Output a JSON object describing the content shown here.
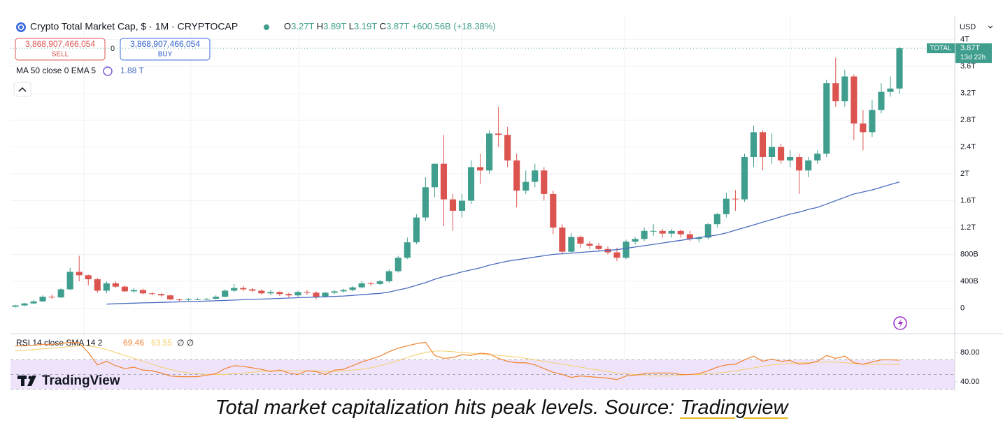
{
  "chart_data": {
    "type": "candlestick",
    "title": "Crypto Total Market Cap, $ · 1M · CRYPTOCAP",
    "ohlc_header": [
      {
        "key": "O",
        "text": "3.27T"
      },
      {
        "key": "H",
        "text": "3.89T"
      },
      {
        "key": "L",
        "text": "3.19T"
      },
      {
        "key": "C",
        "text": "3.87T"
      }
    ],
    "change": "+600.56B (+18.38%)",
    "sell": {
      "price": "3,868,907,466,054",
      "label": "SELL"
    },
    "spread": "0",
    "buy": {
      "price": "3,868,907,466,054",
      "label": "BUY"
    },
    "currency": "USD",
    "price_tag": {
      "symbol": "TOTAL",
      "price": "3.87T",
      "countdown": "13d 22h"
    },
    "logo": "TradingView",
    "caption": "Total market capitalization hits peak levels. Source: ",
    "caption_link": "Tradingview",
    "up_color": "#3f9e8d",
    "down_color": "#dc5450",
    "ylim": [
      -0.38,
      4.36
    ],
    "yticks": [
      0,
      {
        "value": 0.4,
        "label": "400B"
      },
      {
        "value": 0.8,
        "label": "800B"
      },
      {
        "value": 1.2,
        "label": "1.2T"
      },
      {
        "value": 1.6,
        "label": "1.6T"
      },
      {
        "value": 2,
        "label": "2T"
      },
      {
        "value": 2.4,
        "label": "2.4T"
      },
      {
        "value": 2.8,
        "label": "2.8T"
      },
      {
        "value": 3.2,
        "label": "3.2T"
      },
      {
        "value": 3.6,
        "label": "3.6T"
      },
      {
        "value": 4,
        "label": "4T"
      }
    ],
    "grid": true,
    "open": [
      0.02,
      0.04,
      0.07,
      0.1,
      0.17,
      0.16,
      0.28,
      0.54,
      0.49,
      0.43,
      0.26,
      0.37,
      0.32,
      0.25,
      0.27,
      0.22,
      0.21,
      0.19,
      0.13,
      0.12,
      0.13,
      0.13,
      0.14,
      0.17,
      0.26,
      0.3,
      0.28,
      0.26,
      0.22,
      0.24,
      0.21,
      0.19,
      0.24,
      0.23,
      0.17,
      0.23,
      0.25,
      0.27,
      0.31,
      0.37,
      0.36,
      0.4,
      0.55,
      0.75,
      0.98,
      1.35,
      1.8,
      2.15,
      1.62,
      1.45,
      1.6,
      2.1,
      2.05,
      2.6,
      2.58,
      2.2,
      1.75,
      1.88,
      2.05,
      1.7,
      1.2,
      0.84,
      1.06,
      0.96,
      0.93,
      0.88,
      0.83,
      0.75,
      0.99,
      1.03,
      1.15,
      1.15,
      1.11,
      1.15,
      1.1,
      1.03,
      1.05,
      1.25,
      1.4,
      1.63,
      1.62,
      2.25,
      2.62,
      2.25,
      2.4,
      2.2,
      2.25,
      2.05,
      2.2,
      2.3,
      3.35,
      3.08,
      3.45,
      2.75,
      2.62,
      2.95,
      3.22,
      3.27
    ],
    "high": [
      0.05,
      0.08,
      0.12,
      0.19,
      0.2,
      0.3,
      0.6,
      0.78,
      0.5,
      0.45,
      0.4,
      0.4,
      0.34,
      0.3,
      0.29,
      0.24,
      0.22,
      0.2,
      0.14,
      0.15,
      0.15,
      0.15,
      0.19,
      0.28,
      0.36,
      0.33,
      0.3,
      0.28,
      0.27,
      0.25,
      0.23,
      0.26,
      0.27,
      0.25,
      0.24,
      0.27,
      0.29,
      0.33,
      0.4,
      0.39,
      0.42,
      0.58,
      0.78,
      1.05,
      1.4,
      1.95,
      2.15,
      2.58,
      1.7,
      1.7,
      2.2,
      2.3,
      2.65,
      3.0,
      2.7,
      2.3,
      2.05,
      2.15,
      2.1,
      1.75,
      1.25,
      1.12,
      1.08,
      1.0,
      0.97,
      0.92,
      0.9,
      1.02,
      1.06,
      1.2,
      1.25,
      1.18,
      1.18,
      1.17,
      1.15,
      1.07,
      1.27,
      1.42,
      1.72,
      1.76,
      2.3,
      2.72,
      2.65,
      2.6,
      2.45,
      2.35,
      2.3,
      2.25,
      2.35,
      3.4,
      3.73,
      3.55,
      3.48,
      2.95,
      3.1,
      3.35,
      3.45,
      3.89
    ],
    "low": [
      0.01,
      0.03,
      0.06,
      0.09,
      0.14,
      0.15,
      0.27,
      0.4,
      0.34,
      0.23,
      0.22,
      0.3,
      0.24,
      0.23,
      0.2,
      0.19,
      0.17,
      0.12,
      0.1,
      0.11,
      0.12,
      0.12,
      0.13,
      0.16,
      0.24,
      0.25,
      0.24,
      0.2,
      0.19,
      0.18,
      0.16,
      0.17,
      0.2,
      0.13,
      0.16,
      0.21,
      0.23,
      0.25,
      0.29,
      0.33,
      0.34,
      0.38,
      0.53,
      0.73,
      0.95,
      1.3,
      1.65,
      1.22,
      1.15,
      1.35,
      1.55,
      1.85,
      2.0,
      2.4,
      2.1,
      1.5,
      1.7,
      1.8,
      1.6,
      1.1,
      0.8,
      0.82,
      0.9,
      0.88,
      0.85,
      0.8,
      0.7,
      0.73,
      0.95,
      1.0,
      1.08,
      1.05,
      1.05,
      1.05,
      1.0,
      0.98,
      1.02,
      1.2,
      1.35,
      1.45,
      1.58,
      2.1,
      2.05,
      2.15,
      2.15,
      2.1,
      1.7,
      1.95,
      2.15,
      2.25,
      3.0,
      3.0,
      2.5,
      2.35,
      2.55,
      2.9,
      3.15,
      3.19
    ],
    "close": [
      0.04,
      0.07,
      0.1,
      0.17,
      0.16,
      0.28,
      0.54,
      0.49,
      0.43,
      0.26,
      0.37,
      0.32,
      0.25,
      0.27,
      0.22,
      0.21,
      0.19,
      0.13,
      0.12,
      0.13,
      0.13,
      0.14,
      0.17,
      0.26,
      0.3,
      0.28,
      0.26,
      0.22,
      0.24,
      0.21,
      0.19,
      0.24,
      0.23,
      0.17,
      0.23,
      0.25,
      0.27,
      0.31,
      0.37,
      0.36,
      0.4,
      0.55,
      0.75,
      0.98,
      1.35,
      1.8,
      2.15,
      1.62,
      1.45,
      1.6,
      2.1,
      2.05,
      2.6,
      2.58,
      2.2,
      1.75,
      1.88,
      2.05,
      1.7,
      1.2,
      0.84,
      1.06,
      0.96,
      0.93,
      0.88,
      0.83,
      0.75,
      0.99,
      1.03,
      1.15,
      1.15,
      1.11,
      1.15,
      1.1,
      1.03,
      1.05,
      1.25,
      1.4,
      1.63,
      1.62,
      2.25,
      2.62,
      2.25,
      2.4,
      2.2,
      2.25,
      2.05,
      2.2,
      2.3,
      3.35,
      3.08,
      3.45,
      2.75,
      2.62,
      2.95,
      3.22,
      3.27,
      3.87
    ],
    "series": [
      {
        "name": "MA 50 close 0 EMA 5",
        "color": "#4a6cc0",
        "last_label": "1.88 T",
        "values": [
          null,
          null,
          null,
          null,
          null,
          null,
          null,
          null,
          null,
          null,
          0.06,
          0.065,
          0.07,
          0.074,
          0.078,
          0.082,
          0.086,
          0.09,
          0.094,
          0.098,
          0.1,
          0.105,
          0.11,
          0.115,
          0.12,
          0.125,
          0.13,
          0.135,
          0.14,
          0.145,
          0.15,
          0.155,
          0.16,
          0.165,
          0.17,
          0.175,
          0.18,
          0.19,
          0.2,
          0.21,
          0.22,
          0.24,
          0.27,
          0.3,
          0.34,
          0.38,
          0.43,
          0.47,
          0.5,
          0.54,
          0.57,
          0.6,
          0.64,
          0.67,
          0.7,
          0.72,
          0.74,
          0.76,
          0.78,
          0.8,
          0.81,
          0.82,
          0.83,
          0.84,
          0.85,
          0.86,
          0.87,
          0.89,
          0.91,
          0.93,
          0.95,
          0.97,
          0.99,
          1.01,
          1.03,
          1.05,
          1.07,
          1.09,
          1.12,
          1.16,
          1.2,
          1.24,
          1.28,
          1.32,
          1.36,
          1.4,
          1.43,
          1.47,
          1.5,
          1.55,
          1.6,
          1.65,
          1.7,
          1.73,
          1.76,
          1.8,
          1.84,
          1.88
        ]
      }
    ],
    "rsi": {
      "title": "RSI 14 close SMA 14 2",
      "empty": "∅ ∅",
      "ylim": [
        27.6,
        105.7
      ],
      "yticks": [
        {
          "value": 80,
          "label": "80.00"
        },
        {
          "value": 40,
          "label": "40.00"
        }
      ],
      "levels": [
        30,
        50,
        70
      ],
      "band_color": "#efe3fb",
      "series": [
        {
          "name": "RSI",
          "color": "#f08a3c",
          "values": [
            89,
            89,
            90,
            91,
            91,
            92,
            94,
            93,
            80,
            63,
            68,
            62,
            58,
            60,
            56,
            55,
            52,
            48,
            47,
            47,
            47,
            49,
            51,
            58,
            62,
            61,
            59,
            57,
            54,
            56,
            52,
            50,
            55,
            54,
            50,
            56,
            57,
            62,
            67,
            71,
            75,
            81,
            86,
            89,
            92,
            94,
            76,
            72,
            73,
            77,
            76,
            79,
            78,
            72,
            68,
            66,
            66,
            63,
            58,
            53,
            50,
            46,
            48,
            47,
            46,
            45,
            43,
            48,
            49,
            51,
            52,
            52,
            52,
            50,
            50,
            51,
            55,
            60,
            63,
            64,
            70,
            75,
            68,
            71,
            68,
            69,
            64,
            65,
            68,
            76,
            72,
            75,
            66,
            64,
            67,
            70,
            70,
            69.46
          ]
        },
        {
          "name": "SMA",
          "color": "#f4cf68",
          "values": [
            82,
            83,
            84,
            85,
            86,
            87,
            88,
            89,
            89,
            87,
            84,
            80,
            76,
            72,
            68,
            64,
            60,
            57,
            54,
            52,
            51,
            50,
            50,
            50,
            51,
            52,
            53,
            54,
            55,
            55,
            55,
            55,
            55,
            55,
            54,
            54,
            55,
            56,
            57,
            59,
            62,
            65,
            69,
            73,
            77,
            80,
            82,
            82,
            81,
            80,
            79,
            78,
            77,
            76,
            75,
            74,
            72,
            70,
            68,
            66,
            64,
            62,
            60,
            58,
            56,
            54,
            52,
            51,
            50,
            49,
            48,
            48,
            48,
            49,
            50,
            50,
            51,
            52,
            53,
            55,
            57,
            59,
            61,
            63,
            64,
            65,
            66,
            66,
            67,
            67,
            67,
            66,
            65,
            64,
            64,
            63.9,
            63.7,
            63.55
          ]
        }
      ]
    }
  }
}
